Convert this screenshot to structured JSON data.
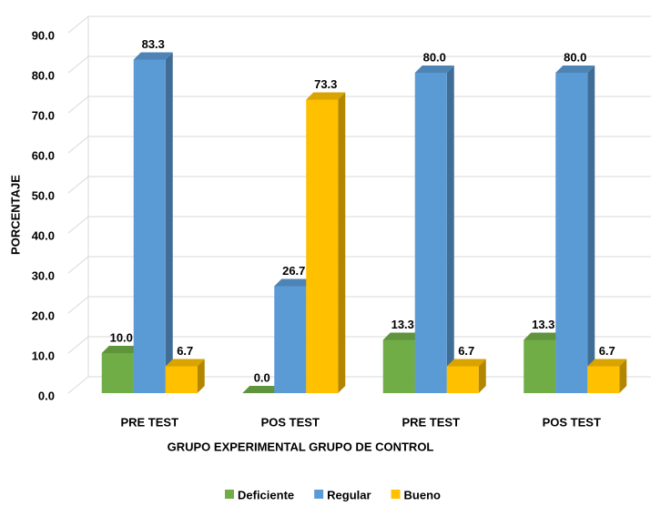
{
  "chart_data": {
    "type": "bar3d",
    "xlabel": "GRUPO EXPERIMENTAL GRUPO DE CONTROL",
    "ylabel": "PORCENTAJE",
    "categories": [
      "PRE TEST",
      "POS TEST",
      "PRE TEST",
      "POS TEST"
    ],
    "series": [
      {
        "name": "Deficiente",
        "color": "#70ad47",
        "values": [
          10,
          0,
          13.3,
          13.3
        ],
        "value_labels": [
          "10.0",
          "0.0",
          "13.3",
          "13.3"
        ]
      },
      {
        "name": "Regular",
        "color": "#5b9bd5",
        "values": [
          83.3,
          26.7,
          80,
          80
        ],
        "value_labels": [
          "83.3",
          "26.7",
          "80.0",
          "80.0"
        ]
      },
      {
        "name": "Bueno",
        "color": "#ffc000",
        "values": [
          6.7,
          73.3,
          6.7,
          6.7
        ],
        "value_labels": [
          "6.7",
          "73.3",
          "6.7",
          "6.7"
        ]
      }
    ],
    "ylim": [
      0,
      90
    ],
    "yticks": [
      {
        "value": 0,
        "label": "0.0"
      },
      {
        "value": 10,
        "label": "10.0"
      },
      {
        "value": 20,
        "label": "20.0"
      },
      {
        "value": 30,
        "label": "30.0"
      },
      {
        "value": 40,
        "label": "40.0"
      },
      {
        "value": 50,
        "label": "50.0"
      },
      {
        "value": 60,
        "label": "60.0"
      },
      {
        "value": 70,
        "label": "70.0"
      },
      {
        "value": 80,
        "label": "80.0"
      },
      {
        "value": 90,
        "label": "90.0"
      }
    ],
    "grid": true,
    "legend": "bottom"
  }
}
